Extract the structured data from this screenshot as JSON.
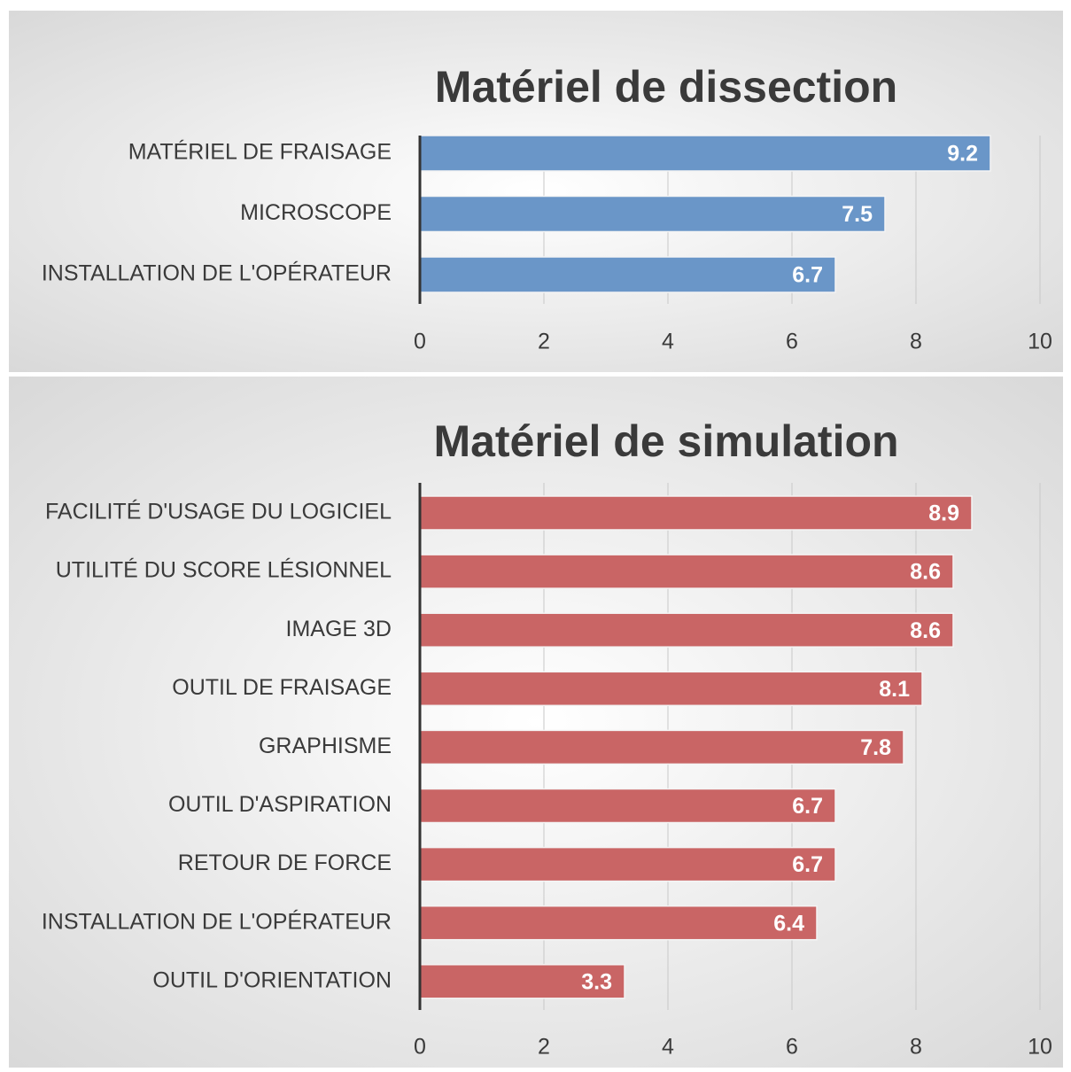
{
  "chart_data": [
    {
      "type": "bar",
      "orientation": "horizontal",
      "title": "Matériel de dissection",
      "categories": [
        "MATÉRIEL DE FRAISAGE",
        "MICROSCOPE",
        "INSTALLATION DE L'OPÉRATEUR"
      ],
      "values": [
        9.2,
        7.5,
        6.7
      ],
      "color": "#6a96c8",
      "xlim": [
        0,
        10
      ],
      "xticks": [
        0,
        2,
        4,
        6,
        8,
        10
      ],
      "grid": true
    },
    {
      "type": "bar",
      "orientation": "horizontal",
      "title": "Matériel de simulation",
      "categories": [
        "FACILITÉ D'USAGE DU LOGICIEL",
        "UTILITÉ DU SCORE LÉSIONNEL",
        "IMAGE 3D",
        "OUTIL DE FRAISAGE",
        "GRAPHISME",
        "OUTIL D'ASPIRATION",
        "RETOUR DE FORCE",
        "INSTALLATION DE L'OPÉRATEUR",
        "OUTIL D'ORIENTATION"
      ],
      "values": [
        8.9,
        8.6,
        8.6,
        8.1,
        7.8,
        6.7,
        6.7,
        6.4,
        3.3
      ],
      "color": "#c96565",
      "xlim": [
        0,
        10
      ],
      "xticks": [
        0,
        2,
        4,
        6,
        8,
        10
      ],
      "grid": true
    }
  ]
}
